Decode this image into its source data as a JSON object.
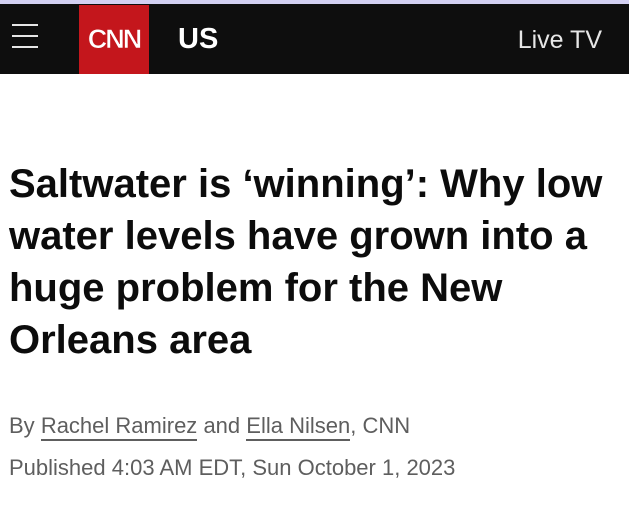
{
  "header": {
    "logo_text": "CNN",
    "section": "US",
    "live_tv": "Live TV",
    "menu_icon": "hamburger-menu-icon"
  },
  "article": {
    "headline": "Saltwater is ‘winning’: Why low water levels have grown into a huge problem for the New Orleans area",
    "byline": {
      "prefix": "By",
      "author1": "Rachel Ramirez",
      "conjunction": "and",
      "author2": "Ella Nilsen",
      "suffix": ", CNN"
    },
    "published": "Published 4:03 AM EDT, Sun October 1, 2023"
  },
  "colors": {
    "brand": "#c4161c",
    "nav_bg": "#0e0e0e",
    "meta_text": "#5e5e5e"
  }
}
